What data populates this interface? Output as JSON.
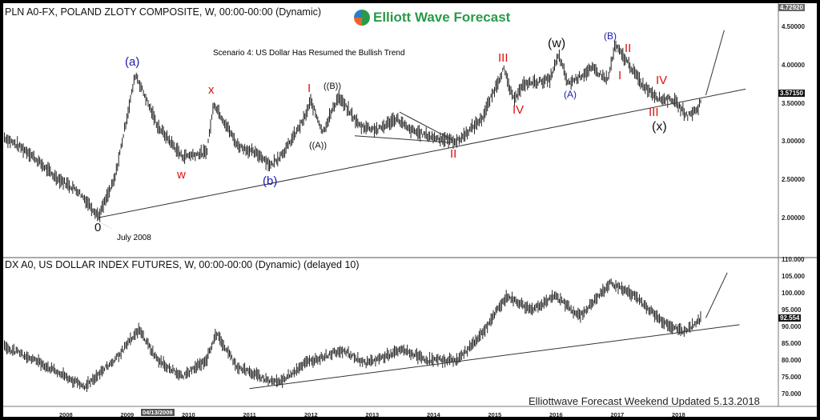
{
  "top_panel": {
    "title": "PLN A0-FX, POLAND ZLOTY COMPOSITE, W, 00:00-00:00 (Dynamic)",
    "scenario": "Scenario 4: US Dollar Has Resumed the Bullish Trend",
    "last_price": "3.57150",
    "high_tag": "4.72920",
    "low_note": "July 2008"
  },
  "bottom_panel": {
    "title": "DX A0, US DOLLAR INDEX FUTURES, W, 00:00-00:00 (Dynamic) (delayed 10)",
    "last_price": "92.554"
  },
  "logo": {
    "text": "Elliott Wave Forecast",
    "color": "#2a9a4a"
  },
  "footer": "Elliottwave Forecast Weekend Updated 5.13.2018",
  "cursor_date": "04/13/2009",
  "wave_labels": {
    "zero": "0",
    "a": "(a)",
    "w": "w",
    "x": "x",
    "b": "(b)",
    "I1": "I",
    "AA": "((A))",
    "BB": "((B))",
    "II": "II",
    "III": "III",
    "IV": "IV",
    "W": "(w)",
    "A": "(A)",
    "B": "(B)",
    "II2": "II",
    "I2": "I",
    "IV2": "IV",
    "III2": "III",
    "X": "(x)"
  },
  "colors": {
    "blue": "#1a1aa8",
    "red": "#dd1111",
    "black": "#111111",
    "bars": "#222222",
    "trendline": "#333333"
  },
  "chart_data": [
    {
      "type": "ohlc",
      "title": "PLN A0-FX, POLAND ZLOTY COMPOSITE, W",
      "x_ticks": [
        "2008",
        "2009",
        "2010",
        "2011",
        "2012",
        "2013",
        "2014",
        "2015",
        "2016",
        "2017",
        "2018"
      ],
      "y_ticks": [
        "2.00000",
        "2.50000",
        "3.00000",
        "3.50000",
        "4.00000",
        "4.50000"
      ],
      "ylim": [
        1.6,
        4.75
      ],
      "approx_path": [
        [
          2007.0,
          3.05
        ],
        [
          2007.4,
          2.85
        ],
        [
          2007.8,
          2.55
        ],
        [
          2008.2,
          2.35
        ],
        [
          2008.54,
          2.02
        ],
        [
          2008.8,
          2.5
        ],
        [
          2009.14,
          3.88
        ],
        [
          2009.5,
          3.2
        ],
        [
          2009.9,
          2.8
        ],
        [
          2010.3,
          2.85
        ],
        [
          2010.42,
          3.5
        ],
        [
          2010.8,
          2.95
        ],
        [
          2011.2,
          2.8
        ],
        [
          2011.35,
          2.68
        ],
        [
          2011.6,
          2.9
        ],
        [
          2011.9,
          3.3
        ],
        [
          2012.0,
          3.52
        ],
        [
          2012.2,
          3.12
        ],
        [
          2012.45,
          3.58
        ],
        [
          2012.8,
          3.2
        ],
        [
          2013.1,
          3.15
        ],
        [
          2013.4,
          3.3
        ],
        [
          2013.6,
          3.15
        ],
        [
          2014.0,
          3.05
        ],
        [
          2014.4,
          3.0
        ],
        [
          2014.8,
          3.3
        ],
        [
          2015.15,
          3.95
        ],
        [
          2015.3,
          3.55
        ],
        [
          2015.5,
          3.75
        ],
        [
          2015.9,
          3.8
        ],
        [
          2016.05,
          4.12
        ],
        [
          2016.2,
          3.75
        ],
        [
          2016.6,
          3.95
        ],
        [
          2016.85,
          3.8
        ],
        [
          2016.97,
          4.25
        ],
        [
          2017.2,
          4.0
        ],
        [
          2017.4,
          3.75
        ],
        [
          2017.7,
          3.55
        ],
        [
          2017.9,
          3.55
        ],
        [
          2018.15,
          3.33
        ],
        [
          2018.32,
          3.42
        ],
        [
          2018.38,
          3.57
        ]
      ],
      "trendline": [
        [
          2008.54,
          2.0
        ],
        [
          2019.1,
          3.68
        ]
      ],
      "projection": [
        [
          2018.45,
          3.6
        ],
        [
          2018.75,
          4.45
        ]
      ]
    },
    {
      "type": "ohlc",
      "title": "DX A0, US DOLLAR INDEX FUTURES, W",
      "y_ticks": [
        "70.000",
        "75.000",
        "80.000",
        "85.000",
        "90.000",
        "95.000",
        "100.000",
        "105.000",
        "110.000"
      ],
      "ylim": [
        67,
        110
      ],
      "approx_path": [
        [
          2007.0,
          84
        ],
        [
          2007.5,
          80
        ],
        [
          2008.0,
          75
        ],
        [
          2008.3,
          72
        ],
        [
          2008.8,
          80
        ],
        [
          2009.2,
          89
        ],
        [
          2009.5,
          80
        ],
        [
          2009.9,
          75
        ],
        [
          2010.3,
          80
        ],
        [
          2010.45,
          88
        ],
        [
          2010.8,
          78
        ],
        [
          2011.3,
          74
        ],
        [
          2011.5,
          73.5
        ],
        [
          2011.9,
          79
        ],
        [
          2012.5,
          83
        ],
        [
          2012.9,
          79
        ],
        [
          2013.5,
          83
        ],
        [
          2013.9,
          80
        ],
        [
          2014.4,
          80
        ],
        [
          2014.8,
          88
        ],
        [
          2015.2,
          99
        ],
        [
          2015.6,
          95
        ],
        [
          2016.0,
          99
        ],
        [
          2016.4,
          93
        ],
        [
          2016.9,
          103
        ],
        [
          2017.3,
          99
        ],
        [
          2017.7,
          92
        ],
        [
          2018.0,
          89
        ],
        [
          2018.1,
          88.5
        ],
        [
          2018.38,
          92.5
        ]
      ],
      "trendline": [
        [
          2011.0,
          71.5
        ],
        [
          2019.0,
          90.5
        ]
      ],
      "projection": [
        [
          2018.45,
          92.5
        ],
        [
          2018.8,
          106
        ]
      ]
    }
  ]
}
